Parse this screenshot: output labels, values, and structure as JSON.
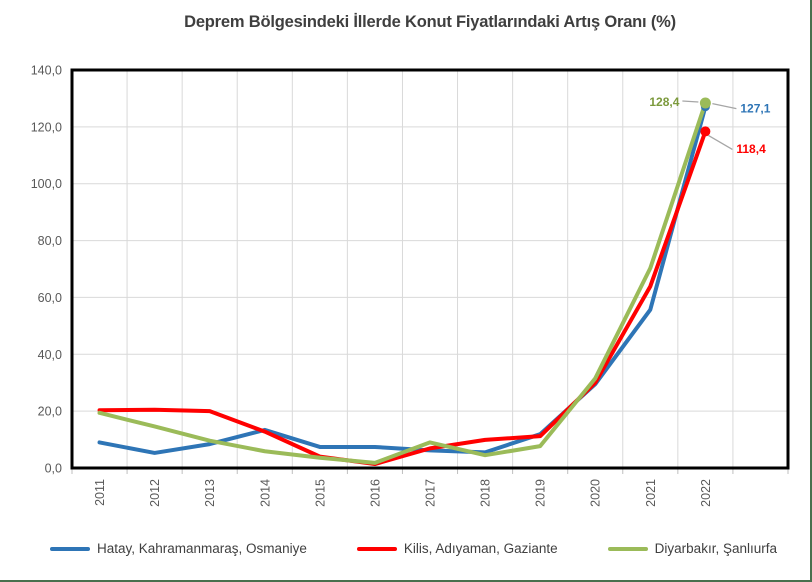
{
  "title": "Deprem Bölgesindeki İllerde Konut Fiyatlarındaki Artış Oranı (%)",
  "chart_data": {
    "type": "line",
    "categories": [
      "2011",
      "2012",
      "2013",
      "2014",
      "2015",
      "2016",
      "2017",
      "2018",
      "2019",
      "2020",
      "2021",
      "2022"
    ],
    "series": [
      {
        "name": "Hatay, Kahramanmaraş, Osmaniye",
        "color": "#2E75B6",
        "label_color": "#2E75B6",
        "values": [
          9.0,
          5.3,
          8.4,
          13.4,
          7.4,
          7.4,
          6.2,
          5.5,
          11.9,
          29.5,
          55.7,
          127.1
        ],
        "end_label": "127,1"
      },
      {
        "name": "Kilis, Adıyaman, Gaziante",
        "color": "#FF0000",
        "label_color": "#FF0000",
        "values": [
          20.3,
          20.5,
          20.0,
          12.8,
          4.0,
          1.4,
          6.9,
          9.9,
          11.2,
          30.0,
          63.9,
          118.4
        ],
        "end_label": "118,4"
      },
      {
        "name": "Diyarbakır, Şanlıurfa",
        "color": "#9BBB59",
        "label_color": "#7C9A3D",
        "values": [
          19.4,
          14.6,
          9.6,
          5.9,
          3.6,
          1.8,
          9.0,
          4.5,
          7.7,
          31.5,
          70.3,
          128.4
        ],
        "end_label": "128,4"
      }
    ],
    "ylim": [
      0,
      140
    ],
    "ytick_step": 20,
    "ytick_labels": [
      "0,0",
      "20,0",
      "40,0",
      "60,0",
      "80,0",
      "100,0",
      "120,0",
      "140,0"
    ],
    "grid": true,
    "legend_position": "bottom",
    "x_label_rotation": -90
  },
  "colors": {
    "grid": "#D9D9D9",
    "frame": "#000000",
    "axis_tick": "#BFBFBF",
    "tick_label": "#595959",
    "title": "#3F3F3F",
    "legend_text": "#404040",
    "leader_line": "#A6A6A6",
    "page_border": "#48704E",
    "background": "#FFFFFF"
  }
}
